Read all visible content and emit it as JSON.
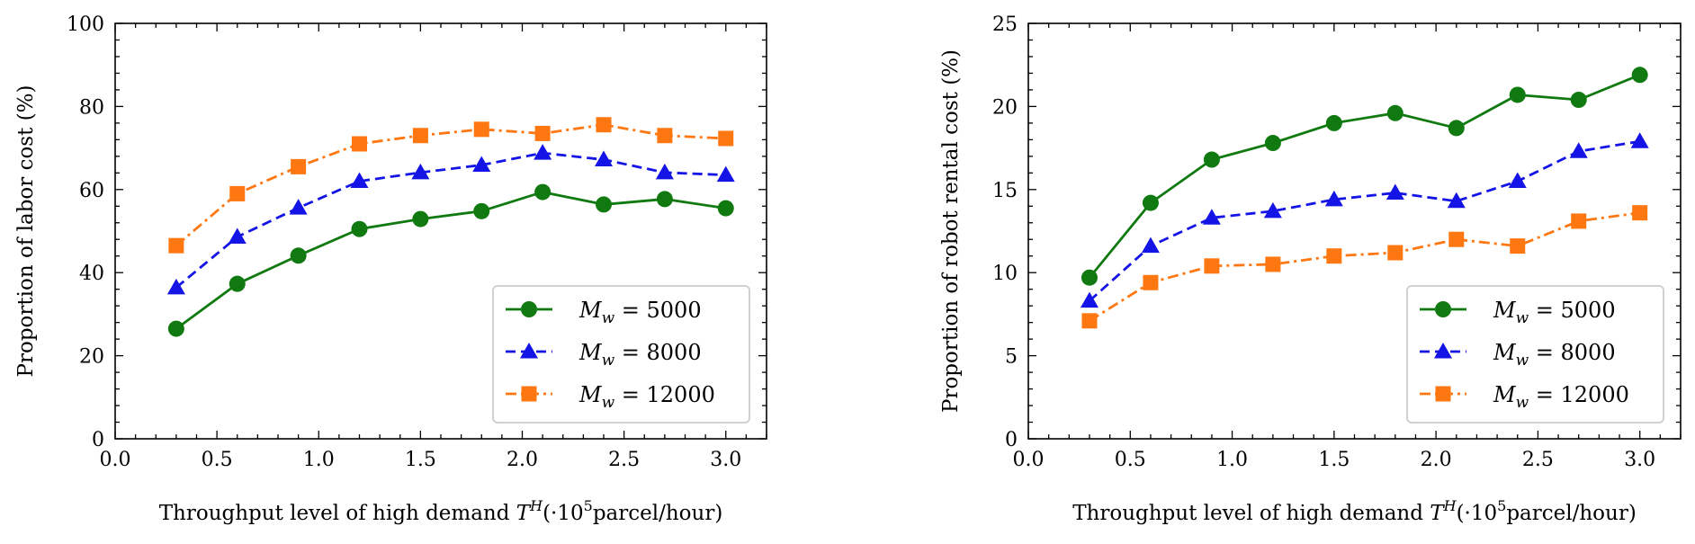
{
  "chart_data": [
    {
      "type": "line",
      "xlabel": "Throughput level of high demand T^H (·10^5 parcel/hour)",
      "ylabel": "Proportion of labor cost (%)",
      "xlim": [
        0.0,
        3.2
      ],
      "ylim": [
        0,
        100
      ],
      "xticks": [
        0.0,
        0.5,
        1.0,
        1.5,
        2.0,
        2.5,
        3.0
      ],
      "yticks": [
        0,
        20,
        40,
        60,
        80,
        100
      ],
      "xtick_labels": [
        "0.0",
        "0.5",
        "1.0",
        "1.5",
        "2.0",
        "2.5",
        "3.0"
      ],
      "ytick_labels": [
        "0",
        "20",
        "40",
        "60",
        "80",
        "100"
      ],
      "x": [
        0.3,
        0.6,
        0.9,
        1.2,
        1.5,
        1.8,
        2.1,
        2.4,
        2.7,
        3.0
      ],
      "legend_position": "lower-right",
      "series": [
        {
          "name": "M_w = 5000",
          "color": "#107a10",
          "marker": "circle",
          "line": "solid",
          "values": [
            26.5,
            37.3,
            44.1,
            50.5,
            52.9,
            54.8,
            59.4,
            56.4,
            57.7,
            55.5
          ]
        },
        {
          "name": "M_w = 8000",
          "color": "#1414e6",
          "marker": "triangle",
          "line": "dashed",
          "values": [
            36.4,
            48.6,
            55.6,
            62.0,
            64.1,
            65.9,
            68.8,
            67.2,
            64.1,
            63.5
          ]
        },
        {
          "name": "M_w = 12000",
          "color": "#ff7711",
          "marker": "square",
          "line": "dashdot",
          "values": [
            46.5,
            59.0,
            65.5,
            71.0,
            73.0,
            74.5,
            73.5,
            75.6,
            73.0,
            72.3
          ]
        }
      ]
    },
    {
      "type": "line",
      "xlabel": "Throughput level of high demand T^H (·10^5 parcel/hour)",
      "ylabel": "Proportion of robot rental cost (%)",
      "xlim": [
        0.0,
        3.2
      ],
      "ylim": [
        0,
        25
      ],
      "xticks": [
        0.0,
        0.5,
        1.0,
        1.5,
        2.0,
        2.5,
        3.0
      ],
      "yticks": [
        0,
        5,
        10,
        15,
        20,
        25
      ],
      "xtick_labels": [
        "0.0",
        "0.5",
        "1.0",
        "1.5",
        "2.0",
        "2.5",
        "3.0"
      ],
      "ytick_labels": [
        "0",
        "5",
        "10",
        "15",
        "20",
        "25"
      ],
      "x": [
        0.3,
        0.6,
        0.9,
        1.2,
        1.5,
        1.8,
        2.1,
        2.4,
        2.7,
        3.0
      ],
      "legend_position": "lower-right",
      "series": [
        {
          "name": "M_w = 5000",
          "color": "#107a10",
          "marker": "circle",
          "line": "solid",
          "values": [
            9.7,
            14.2,
            16.8,
            17.8,
            19.0,
            19.6,
            18.7,
            20.7,
            20.4,
            21.9
          ]
        },
        {
          "name": "M_w = 8000",
          "color": "#1414e6",
          "marker": "triangle",
          "line": "dashed",
          "values": [
            8.3,
            11.6,
            13.3,
            13.7,
            14.4,
            14.8,
            14.3,
            15.5,
            17.3,
            17.9
          ]
        },
        {
          "name": "M_w = 12000",
          "color": "#ff7711",
          "marker": "square",
          "line": "dashdot",
          "values": [
            7.1,
            9.4,
            10.4,
            10.5,
            11.0,
            11.2,
            12.0,
            11.6,
            13.1,
            13.6
          ]
        }
      ]
    }
  ]
}
